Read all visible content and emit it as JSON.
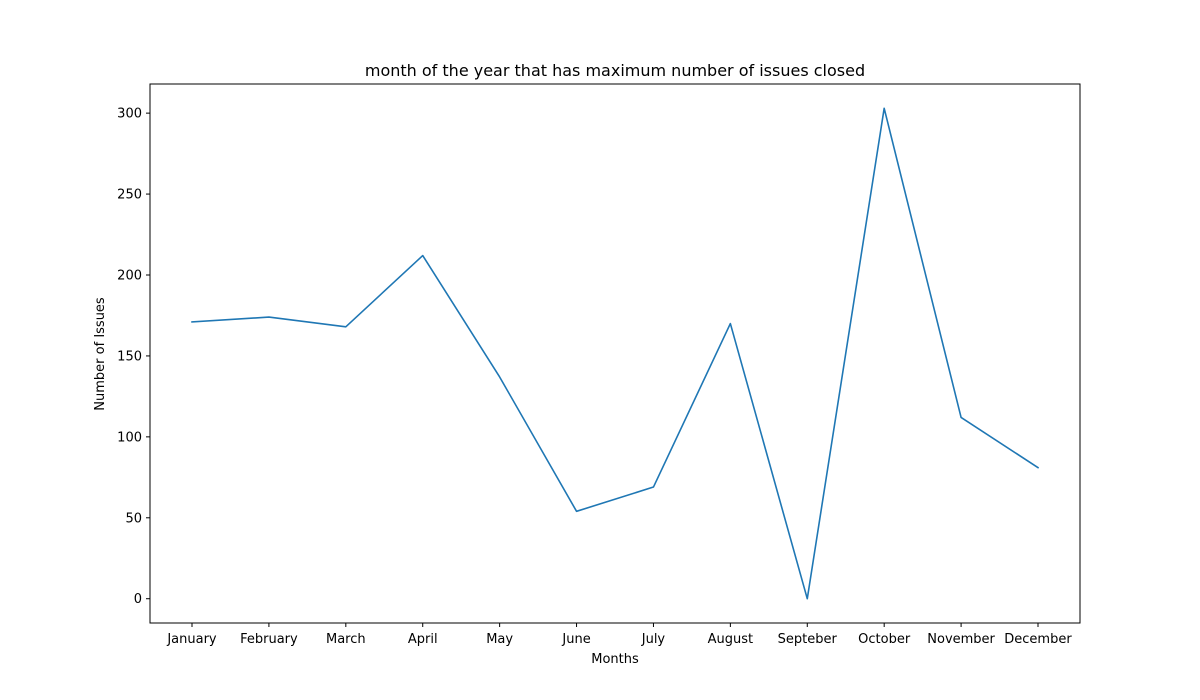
{
  "chart_data": {
    "type": "line",
    "title": "month of the year that has maximum number of issues closed",
    "xlabel": "Months",
    "ylabel": "Number of Issues",
    "categories": [
      "January",
      "February",
      "March",
      "April",
      "May",
      "June",
      "July",
      "August",
      "Septeber",
      "October",
      "November",
      "December"
    ],
    "series": [
      {
        "values": [
          171,
          174,
          168,
          212,
          137,
          54,
          69,
          170,
          0,
          303,
          112,
          81
        ]
      }
    ],
    "ylim": [
      -15,
      318
    ],
    "yticks": [
      0,
      50,
      100,
      150,
      200,
      250,
      300
    ],
    "grid": false,
    "line_color": "#1f77b4"
  }
}
